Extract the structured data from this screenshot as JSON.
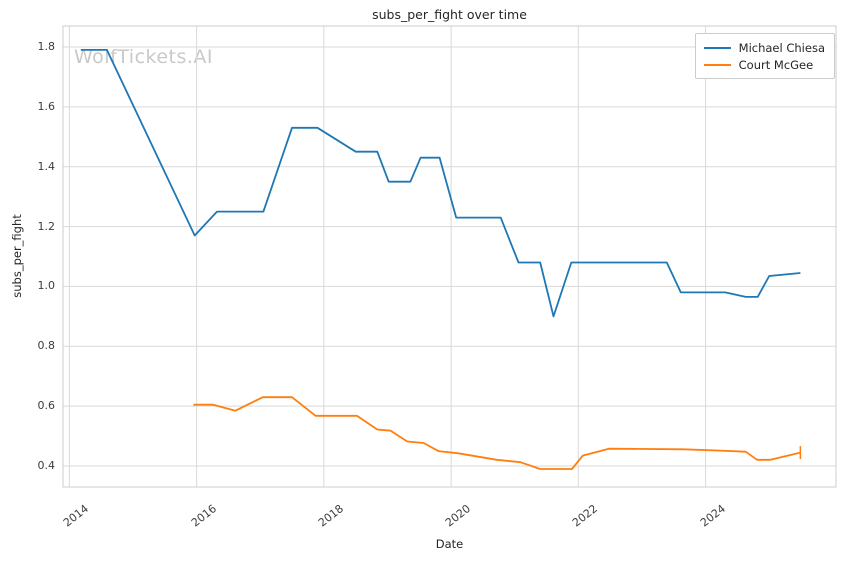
{
  "watermark": "WolfTickets.AI",
  "chart_data": {
    "type": "line",
    "title": "subs_per_fight over time",
    "xlabel": "Date",
    "ylabel": "subs_per_fight",
    "xlim": [
      2013.9,
      2026.05
    ],
    "ylim": [
      0.33,
      1.87
    ],
    "xticks": [
      2014,
      2016,
      2018,
      2020,
      2022,
      2024
    ],
    "yticks": [
      0.4,
      0.6,
      0.8,
      1.0,
      1.2,
      1.4,
      1.6,
      1.8
    ],
    "grid": true,
    "grid_color": "#d9d9d9",
    "border_color": "#cccccc",
    "legend_position": "upper right",
    "series": [
      {
        "name": "Michael Chiesa",
        "color": "#1f77b4",
        "points": [
          [
            2014.18,
            1.79
          ],
          [
            2014.59,
            1.79
          ],
          [
            2015.97,
            1.17
          ],
          [
            2016.32,
            1.25
          ],
          [
            2017.05,
            1.25
          ],
          [
            2017.5,
            1.53
          ],
          [
            2017.9,
            1.53
          ],
          [
            2018.5,
            1.45
          ],
          [
            2018.84,
            1.45
          ],
          [
            2019.02,
            1.35
          ],
          [
            2019.36,
            1.35
          ],
          [
            2019.52,
            1.43
          ],
          [
            2019.82,
            1.43
          ],
          [
            2020.08,
            1.23
          ],
          [
            2020.78,
            1.23
          ],
          [
            2021.06,
            1.08
          ],
          [
            2021.4,
            1.08
          ],
          [
            2021.61,
            0.9
          ],
          [
            2021.89,
            1.08
          ],
          [
            2023.39,
            1.08
          ],
          [
            2023.61,
            0.98
          ],
          [
            2024.31,
            0.98
          ],
          [
            2024.63,
            0.965
          ],
          [
            2024.82,
            0.965
          ],
          [
            2025.0,
            1.035
          ],
          [
            2025.49,
            1.045
          ]
        ]
      },
      {
        "name": "Court McGee",
        "color": "#ff7f0e",
        "end_marker": "|",
        "points": [
          [
            2015.95,
            0.605
          ],
          [
            2016.26,
            0.605
          ],
          [
            2016.61,
            0.585
          ],
          [
            2017.04,
            0.63
          ],
          [
            2017.5,
            0.63
          ],
          [
            2017.87,
            0.568
          ],
          [
            2018.52,
            0.568
          ],
          [
            2018.84,
            0.522
          ],
          [
            2019.05,
            0.518
          ],
          [
            2019.31,
            0.482
          ],
          [
            2019.57,
            0.477
          ],
          [
            2019.8,
            0.45
          ],
          [
            2020.1,
            0.443
          ],
          [
            2020.72,
            0.421
          ],
          [
            2021.09,
            0.413
          ],
          [
            2021.4,
            0.39
          ],
          [
            2021.9,
            0.39
          ],
          [
            2022.07,
            0.435
          ],
          [
            2022.48,
            0.458
          ],
          [
            2023.66,
            0.456
          ],
          [
            2024.18,
            0.452
          ],
          [
            2024.63,
            0.448
          ],
          [
            2024.81,
            0.421
          ],
          [
            2025.02,
            0.421
          ],
          [
            2025.49,
            0.445
          ]
        ]
      }
    ]
  }
}
